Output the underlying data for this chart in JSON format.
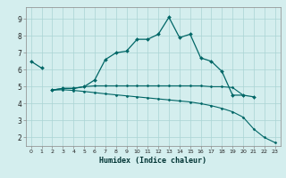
{
  "title": "",
  "xlabel": "Humidex (Indice chaleur)",
  "bg_color": "#d4eeee",
  "grid_color": "#aad4d4",
  "line_color": "#006666",
  "xlim": [
    -0.5,
    23.5
  ],
  "ylim": [
    1.5,
    9.7
  ],
  "xticks": [
    0,
    1,
    2,
    3,
    4,
    5,
    6,
    7,
    8,
    9,
    10,
    11,
    12,
    13,
    14,
    15,
    16,
    17,
    18,
    19,
    20,
    21,
    22,
    23
  ],
  "yticks": [
    2,
    3,
    4,
    5,
    6,
    7,
    8,
    9
  ],
  "curve1_x": [
    0,
    1
  ],
  "curve1_y": [
    6.5,
    6.1
  ],
  "curve2_x": [
    2,
    3,
    4,
    5,
    6,
    7,
    8,
    9,
    10,
    11,
    12,
    13,
    14,
    15,
    16,
    17,
    18,
    19,
    20,
    21
  ],
  "curve2_y": [
    4.8,
    4.9,
    4.9,
    5.0,
    5.4,
    6.6,
    7.0,
    7.1,
    7.8,
    7.8,
    8.1,
    9.1,
    7.9,
    8.1,
    6.7,
    6.5,
    5.9,
    4.5,
    4.5,
    4.4
  ],
  "curve3_x": [
    2,
    3,
    4,
    5,
    6,
    7,
    8,
    9,
    10,
    11,
    12,
    13,
    14,
    15,
    16,
    17,
    18,
    19,
    20
  ],
  "curve3_y": [
    4.8,
    4.9,
    4.9,
    5.0,
    5.05,
    5.05,
    5.05,
    5.05,
    5.05,
    5.05,
    5.05,
    5.05,
    5.05,
    5.05,
    5.05,
    5.0,
    5.0,
    4.95,
    4.5
  ],
  "curve4_x": [
    2,
    3,
    4,
    5,
    6,
    7,
    8,
    9,
    10,
    11,
    12,
    13,
    14,
    15,
    16,
    17,
    18,
    19,
    20,
    21,
    22,
    23
  ],
  "curve4_y": [
    4.8,
    4.82,
    4.78,
    4.72,
    4.65,
    4.58,
    4.52,
    4.46,
    4.4,
    4.34,
    4.28,
    4.22,
    4.16,
    4.1,
    4.0,
    3.88,
    3.72,
    3.52,
    3.2,
    2.5,
    2.0,
    1.7
  ]
}
